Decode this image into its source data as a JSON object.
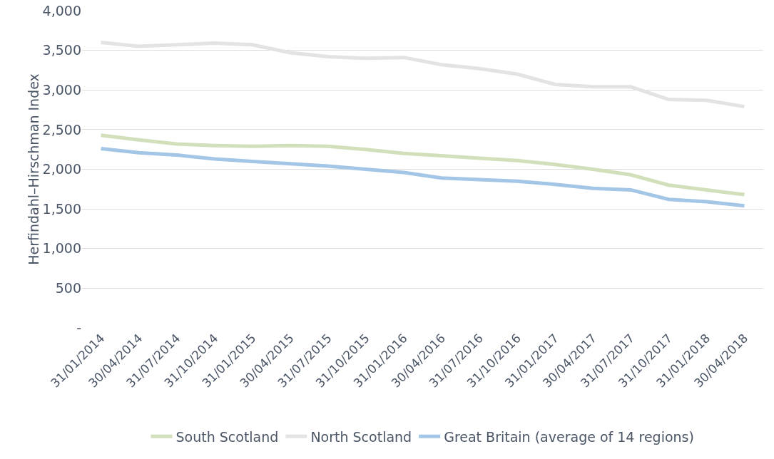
{
  "chart_data": {
    "type": "line",
    "ylabel": "Herfindahl–Hirschman Index",
    "categories": [
      "31/01/2014",
      "30/04/2014",
      "31/07/2014",
      "31/10/2014",
      "31/01/2015",
      "30/04/2015",
      "31/07/2015",
      "31/10/2015",
      "31/01/2016",
      "30/04/2016",
      "31/07/2016",
      "31/10/2016",
      "31/01/2017",
      "30/04/2017",
      "31/07/2017",
      "31/10/2017",
      "31/01/2018",
      "30/04/2018"
    ],
    "series": [
      {
        "name": "South Scotland",
        "color": "#d1e0ba",
        "values": [
          2430,
          2370,
          2320,
          2300,
          2290,
          2300,
          2290,
          2250,
          2200,
          2170,
          2140,
          2110,
          2060,
          2000,
          1930,
          1800,
          1740,
          1680
        ]
      },
      {
        "name": "North Scotland",
        "color": "#e3e3e3",
        "values": [
          3600,
          3550,
          3570,
          3590,
          3570,
          3470,
          3420,
          3400,
          3410,
          3320,
          3270,
          3200,
          3070,
          3040,
          3040,
          2880,
          2870,
          2790
        ]
      },
      {
        "name": "Great Britain (average of 14 regions)",
        "color": "#a3c6e6",
        "values": [
          2260,
          2210,
          2180,
          2130,
          2100,
          2070,
          2040,
          2000,
          1960,
          1890,
          1870,
          1850,
          1810,
          1760,
          1740,
          1620,
          1590,
          1540
        ]
      }
    ],
    "ylim": [
      0,
      4000
    ],
    "yticks": [
      {
        "value": 0,
        "label": "-"
      },
      {
        "value": 500,
        "label": "500"
      },
      {
        "value": 1000,
        "label": "1,000"
      },
      {
        "value": 1500,
        "label": "1,500"
      },
      {
        "value": 2000,
        "label": "2,000"
      },
      {
        "value": 2500,
        "label": "2,500"
      },
      {
        "value": 3000,
        "label": "3,000"
      },
      {
        "value": 3500,
        "label": "3,500"
      },
      {
        "value": 4000,
        "label": "4,000"
      }
    ],
    "grid": "y",
    "legend": "bottom",
    "marker": "none",
    "line_style": "solid"
  }
}
